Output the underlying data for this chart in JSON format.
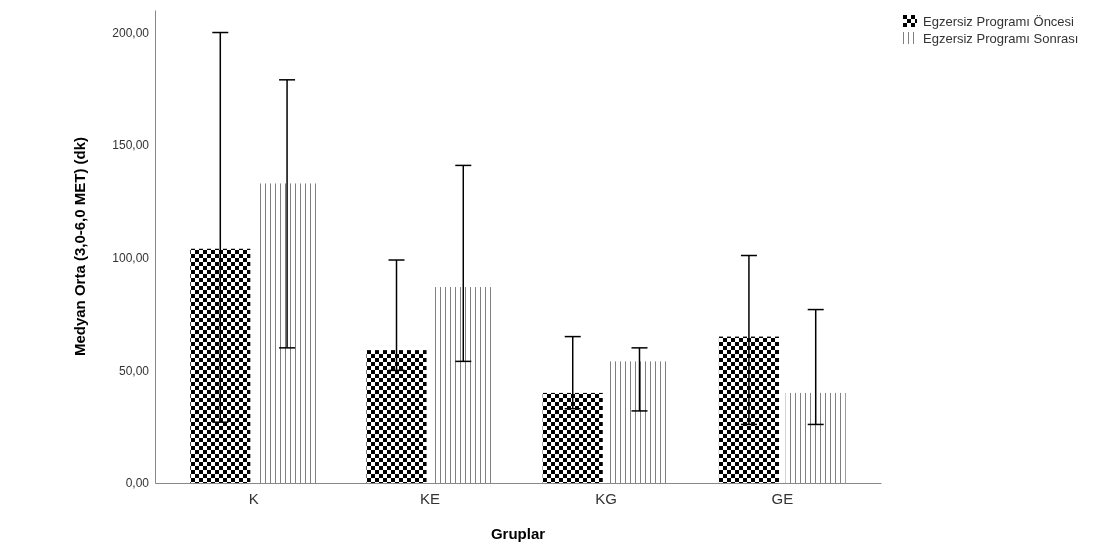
{
  "chart_data": {
    "type": "bar",
    "xlabel": "Gruplar",
    "ylabel": "Medyan Orta (3,0-6,0 MET) (dk)",
    "categories": [
      "K",
      "KE",
      "KG",
      "GE"
    ],
    "series": [
      {
        "name": "Egzersiz Programı Öncesi",
        "color": "#000000",
        "values": [
          104,
          59,
          40,
          65
        ],
        "errors": [
          [
            27,
            200
          ],
          [
            50,
            99
          ],
          [
            33,
            65
          ],
          [
            26,
            101
          ]
        ]
      },
      {
        "name": "Egzersiz Programı Sonrası",
        "color": "#808080",
        "values": [
          133,
          87,
          54,
          40
        ],
        "errors": [
          [
            60,
            179
          ],
          [
            54,
            141
          ],
          [
            32,
            60
          ],
          [
            26,
            77
          ]
        ]
      }
    ],
    "ylim": [
      0,
      210
    ],
    "yticks": [
      {
        "value": 0,
        "label": "0,00"
      },
      {
        "value": 50,
        "label": "50,00"
      },
      {
        "value": 100,
        "label": "100,00"
      },
      {
        "value": 150,
        "label": "150,00"
      },
      {
        "value": 200,
        "label": "200,00"
      }
    ],
    "grid": false,
    "legend": "top right"
  }
}
